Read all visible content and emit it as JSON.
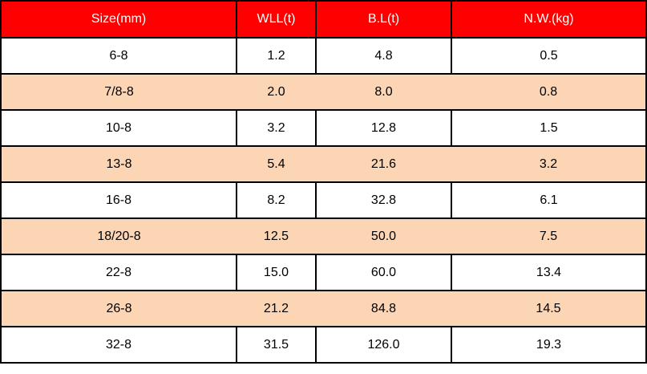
{
  "chart_data": {
    "type": "table",
    "columns": [
      "Size(mm)",
      "WLL(t)",
      "B.L(t)",
      "N.W.(kg)"
    ],
    "rows": [
      [
        "6-8",
        "1.2",
        "4.8",
        "0.5"
      ],
      [
        "7/8-8",
        "2.0",
        "8.0",
        "0.8"
      ],
      [
        "10-8",
        "3.2",
        "12.8",
        "1.5"
      ],
      [
        "13-8",
        "5.4",
        "21.6",
        "3.2"
      ],
      [
        "16-8",
        "8.2",
        "32.8",
        "6.1"
      ],
      [
        "18/20-8",
        "12.5",
        "50.0",
        "7.5"
      ],
      [
        "22-8",
        "15.0",
        "60.0",
        "13.4"
      ],
      [
        "26-8",
        "21.2",
        "84.8",
        "14.5"
      ],
      [
        "32-8",
        "31.5",
        "126.0",
        "19.3"
      ]
    ],
    "layout": {
      "header_row": true,
      "striping": "alternate rows shaded, stripes have no vertical gridlines",
      "alignment": "center"
    }
  },
  "colors": {
    "header_bg": "#ff0000",
    "header_text": "#ffffff",
    "stripe_bg": "#fcd5b4",
    "border": "#000000",
    "cell_text": "#000000"
  }
}
